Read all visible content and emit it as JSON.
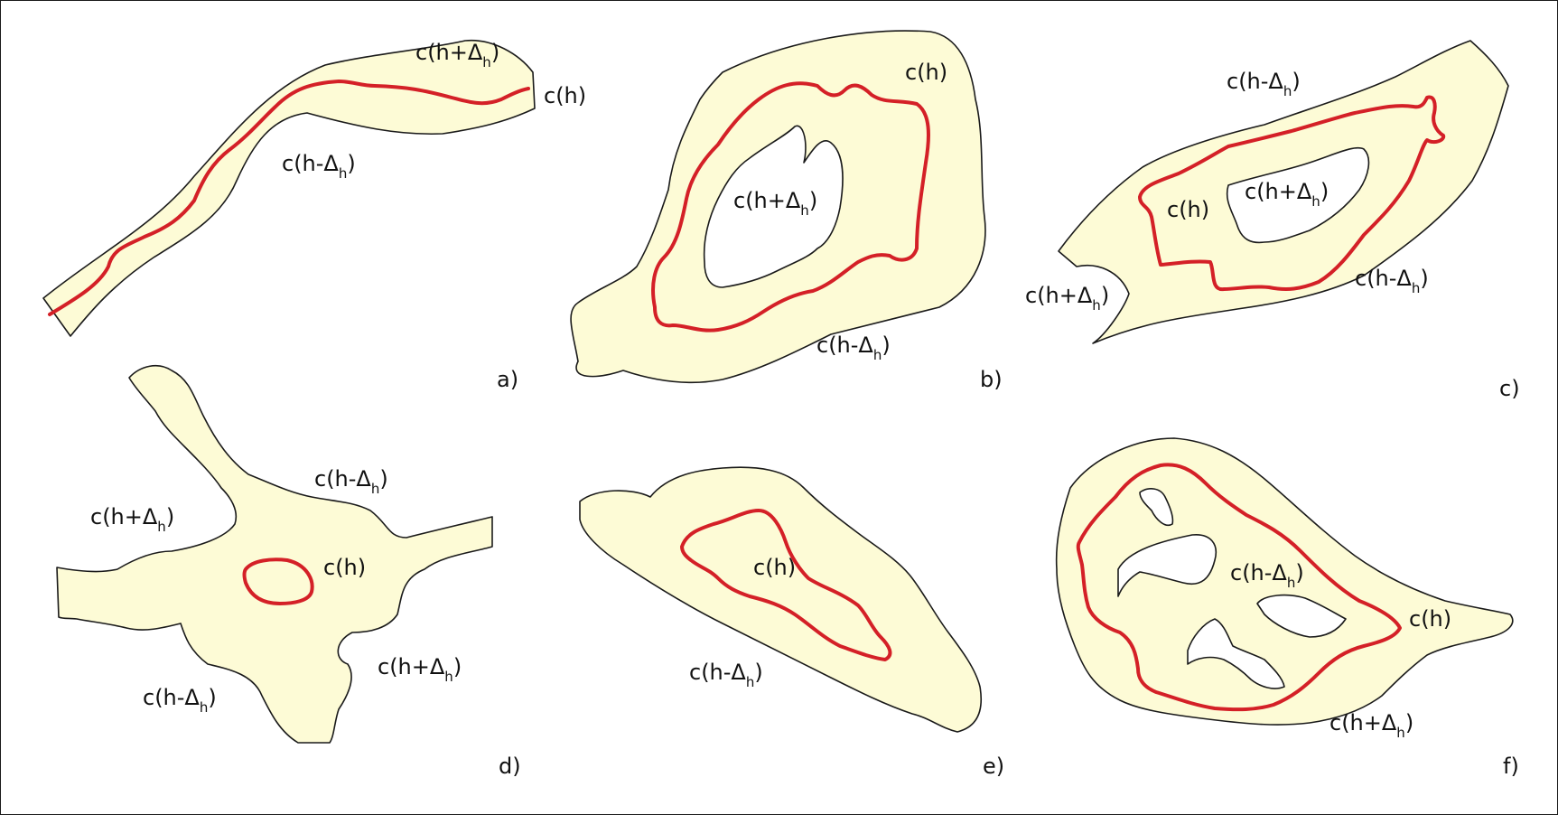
{
  "colors": {
    "region_fill": "#fdfbd6",
    "outline": "#1a1a1a",
    "contour": "#d42027",
    "background": "#ffffff"
  },
  "panels": [
    {
      "id": "a",
      "letter": "a)",
      "labels": [
        {
          "base": "c(h+Δ",
          "sub": "h",
          "tail": ")"
        },
        {
          "base": "c(h)",
          "sub": "",
          "tail": ""
        },
        {
          "base": "c(h-Δ",
          "sub": "h",
          "tail": ")"
        }
      ]
    },
    {
      "id": "b",
      "letter": "b)",
      "labels": [
        {
          "base": "c(h)",
          "sub": "",
          "tail": ""
        },
        {
          "base": "c(h+Δ",
          "sub": "h",
          "tail": ")"
        },
        {
          "base": "c(h-Δ",
          "sub": "h",
          "tail": ")"
        }
      ]
    },
    {
      "id": "c",
      "letter": "c)",
      "labels": [
        {
          "base": "c(h-Δ",
          "sub": "h",
          "tail": ")"
        },
        {
          "base": "c(h)",
          "sub": "",
          "tail": ""
        },
        {
          "base": "c(h+Δ",
          "sub": "h",
          "tail": ")"
        },
        {
          "base": "c(h-Δ",
          "sub": "h",
          "tail": ")"
        },
        {
          "base": "c(h+Δ",
          "sub": "h",
          "tail": ")"
        }
      ]
    },
    {
      "id": "d",
      "letter": "d)",
      "labels": [
        {
          "base": "c(h-Δ",
          "sub": "h",
          "tail": ")"
        },
        {
          "base": "c(h+Δ",
          "sub": "h",
          "tail": ")"
        },
        {
          "base": "c(h)",
          "sub": "",
          "tail": ""
        },
        {
          "base": "c(h+Δ",
          "sub": "h",
          "tail": ")"
        },
        {
          "base": "c(h-Δ",
          "sub": "h",
          "tail": ")"
        }
      ]
    },
    {
      "id": "e",
      "letter": "e)",
      "labels": [
        {
          "base": "c(h)",
          "sub": "",
          "tail": ""
        },
        {
          "base": "c(h-Δ",
          "sub": "h",
          "tail": ")"
        }
      ]
    },
    {
      "id": "f",
      "letter": "f)",
      "labels": [
        {
          "base": "c(h-Δ",
          "sub": "h",
          "tail": ")"
        },
        {
          "base": "c(h)",
          "sub": "",
          "tail": ""
        },
        {
          "base": "c(h+Δ",
          "sub": "h",
          "tail": ")"
        }
      ]
    }
  ]
}
